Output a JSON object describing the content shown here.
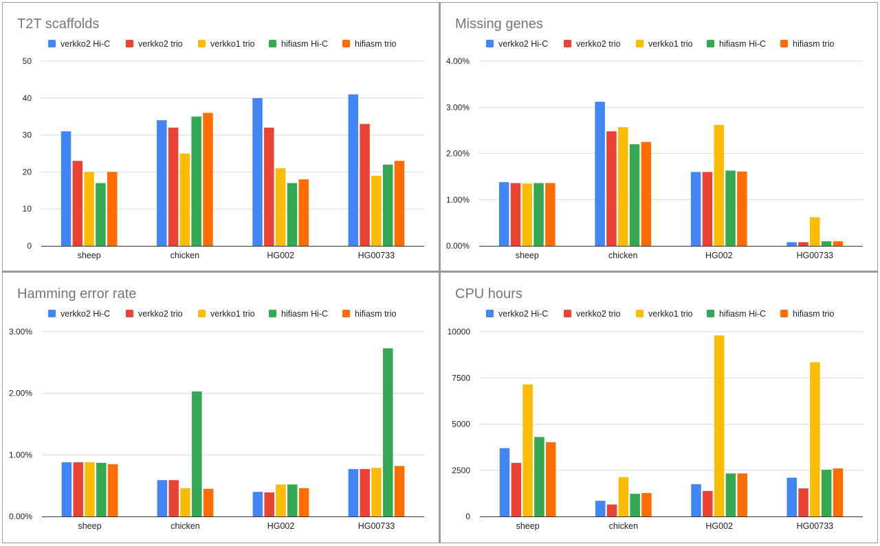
{
  "chart_data": [
    {
      "type": "bar",
      "title": "T2T scaffolds",
      "categories": [
        "sheep",
        "chicken",
        "HG002",
        "HG00733"
      ],
      "ylim": [
        0,
        50
      ],
      "yticks": [
        0,
        10,
        20,
        30,
        40,
        50
      ],
      "yticks_labels": [
        "0",
        "10",
        "20",
        "30",
        "40",
        "50"
      ],
      "grid": true,
      "legend_position": "top",
      "series": [
        {
          "name": "verkko2 Hi-C",
          "color": "#4285f4",
          "values": [
            31,
            34,
            40,
            41
          ]
        },
        {
          "name": "verkko2 trio",
          "color": "#ea4335",
          "values": [
            23,
            32,
            32,
            33
          ]
        },
        {
          "name": "verkko1 trio",
          "color": "#fbbc04",
          "values": [
            20,
            25,
            21,
            19
          ]
        },
        {
          "name": "hifiasm Hi-C",
          "color": "#34a853",
          "values": [
            17,
            35,
            17,
            22
          ]
        },
        {
          "name": "hifiasm trio",
          "color": "#ff6d01",
          "values": [
            20,
            36,
            18,
            23
          ]
        }
      ]
    },
    {
      "type": "bar",
      "title": "Missing genes",
      "categories": [
        "sheep",
        "chicken",
        "HG002",
        "HG00733"
      ],
      "ylim": [
        0,
        4
      ],
      "yticks": [
        0,
        1,
        2,
        3,
        4
      ],
      "yticks_labels": [
        "0.00%",
        "1.00%",
        "2.00%",
        "3.00%",
        "4.00%"
      ],
      "grid": true,
      "legend_position": "top",
      "series": [
        {
          "name": "verkko2 Hi-C",
          "color": "#4285f4",
          "values": [
            1.38,
            3.12,
            1.6,
            0.08
          ]
        },
        {
          "name": "verkko2 trio",
          "color": "#ea4335",
          "values": [
            1.36,
            2.48,
            1.6,
            0.08
          ]
        },
        {
          "name": "verkko1 trio",
          "color": "#fbbc04",
          "values": [
            1.35,
            2.57,
            2.62,
            0.62
          ]
        },
        {
          "name": "hifiasm Hi-C",
          "color": "#34a853",
          "values": [
            1.36,
            2.2,
            1.63,
            0.1
          ]
        },
        {
          "name": "hifiasm trio",
          "color": "#ff6d01",
          "values": [
            1.36,
            2.25,
            1.61,
            0.1
          ]
        }
      ]
    },
    {
      "type": "bar",
      "title": "Hamming error rate",
      "categories": [
        "sheep",
        "chicken",
        "HG002",
        "HG00733"
      ],
      "ylim": [
        0,
        3
      ],
      "yticks": [
        0,
        1,
        2,
        3
      ],
      "yticks_labels": [
        "0.00%",
        "1.00%",
        "2.00%",
        "3.00%"
      ],
      "grid": true,
      "legend_position": "top",
      "series": [
        {
          "name": "verkko2 Hi-C",
          "color": "#4285f4",
          "values": [
            0.88,
            0.59,
            0.4,
            0.77
          ]
        },
        {
          "name": "verkko2 trio",
          "color": "#ea4335",
          "values": [
            0.88,
            0.59,
            0.39,
            0.77
          ]
        },
        {
          "name": "verkko1 trio",
          "color": "#fbbc04",
          "values": [
            0.88,
            0.46,
            0.52,
            0.79
          ]
        },
        {
          "name": "hifiasm Hi-C",
          "color": "#34a853",
          "values": [
            0.87,
            2.03,
            0.52,
            2.73
          ]
        },
        {
          "name": "hifiasm trio",
          "color": "#ff6d01",
          "values": [
            0.85,
            0.45,
            0.46,
            0.82
          ]
        }
      ]
    },
    {
      "type": "bar",
      "title": "CPU hours",
      "categories": [
        "sheep",
        "chicken",
        "HG002",
        "HG00733"
      ],
      "ylim": [
        0,
        10000
      ],
      "yticks": [
        0,
        2500,
        5000,
        7500,
        10000
      ],
      "yticks_labels": [
        "0",
        "2500",
        "5000",
        "7500",
        "10000"
      ],
      "grid": true,
      "legend_position": "top",
      "series": [
        {
          "name": "verkko2 Hi-C",
          "color": "#4285f4",
          "values": [
            3700,
            850,
            1750,
            2100
          ]
        },
        {
          "name": "verkko2 trio",
          "color": "#ea4335",
          "values": [
            2900,
            650,
            1380,
            1520
          ]
        },
        {
          "name": "verkko1 trio",
          "color": "#fbbc04",
          "values": [
            7150,
            2130,
            9800,
            8350
          ]
        },
        {
          "name": "hifiasm Hi-C",
          "color": "#34a853",
          "values": [
            4300,
            1230,
            2330,
            2530
          ]
        },
        {
          "name": "hifiasm trio",
          "color": "#ff6d01",
          "values": [
            4020,
            1270,
            2330,
            2600
          ]
        }
      ]
    }
  ]
}
